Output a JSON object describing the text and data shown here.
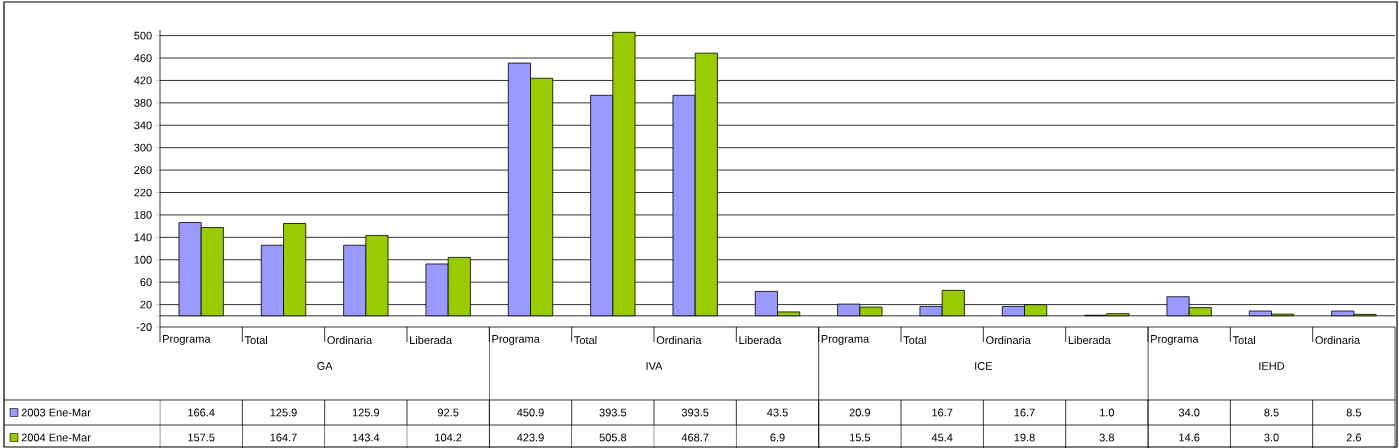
{
  "chart_data": {
    "type": "bar",
    "categories": [
      "Programa",
      "Total",
      "Ordinaria",
      "Liberada",
      "Programa",
      "Total",
      "Ordinaria",
      "Liberada",
      "Programa",
      "Total",
      "Ordinaria",
      "Liberada",
      "Programa",
      "Total",
      "Ordinaria"
    ],
    "annotations": [
      "GA",
      "IVA",
      "ICE",
      "IEHD"
    ],
    "series": [
      {
        "name": "2003 Ene-Mar",
        "color": "#9999ff",
        "values": [
          166.4,
          125.9,
          125.9,
          92.5,
          450.9,
          393.5,
          393.5,
          43.5,
          20.9,
          16.7,
          16.7,
          1.0,
          34.0,
          8.5,
          8.5
        ],
        "value_labels": [
          "166.4",
          "125.9",
          "125.9",
          "92.5",
          "450.9",
          "393.5",
          "393.5",
          "43.5",
          "20.9",
          "16.7",
          "16.7",
          "1.0",
          "34.0",
          "8.5",
          "8.5"
        ]
      },
      {
        "name": "2004 Ene-Mar",
        "color": "#99cc00",
        "values": [
          157.5,
          164.7,
          143.4,
          104.2,
          423.9,
          505.8,
          468.7,
          6.9,
          15.5,
          45.4,
          19.8,
          3.8,
          14.6,
          3.0,
          2.6
        ],
        "value_labels": [
          "157.5",
          "164.7",
          "143.4",
          "104.2",
          "423.9",
          "505.8",
          "468.7",
          "6.9",
          "15.5",
          "45.4",
          "19.8",
          "3.8",
          "14.6",
          "3.0",
          "2.6"
        ]
      }
    ],
    "ylim": [
      -20,
      510
    ],
    "yticks": [
      -20,
      20,
      60,
      100,
      140,
      180,
      220,
      260,
      300,
      340,
      380,
      420,
      460,
      500
    ],
    "grid": "y",
    "legend": "bottom"
  }
}
